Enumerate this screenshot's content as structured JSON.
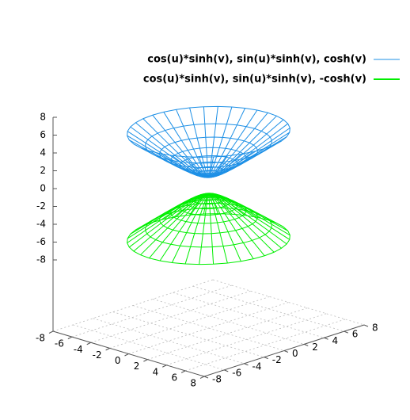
{
  "chart_data": {
    "type": "surface",
    "series": [
      {
        "name": "cos(u)*sinh(v), sin(u)*sinh(v), cosh(v)",
        "color": "#1e90e6"
      },
      {
        "name": "cos(u)*sinh(v), sin(u)*sinh(v), -cosh(v)",
        "color": "#00ee00"
      }
    ],
    "xlim": [
      -8,
      8
    ],
    "ylim": [
      -8,
      8
    ],
    "zlim": [
      -8,
      8
    ],
    "xticks": [
      -8,
      -6,
      -4,
      -2,
      0,
      2,
      4,
      6,
      8
    ],
    "yticks": [
      -8,
      -6,
      -4,
      -2,
      0,
      2,
      4,
      6,
      8
    ],
    "zticks": [
      -8,
      -6,
      -4,
      -2,
      0,
      2,
      4,
      6,
      8
    ],
    "grid": true
  }
}
